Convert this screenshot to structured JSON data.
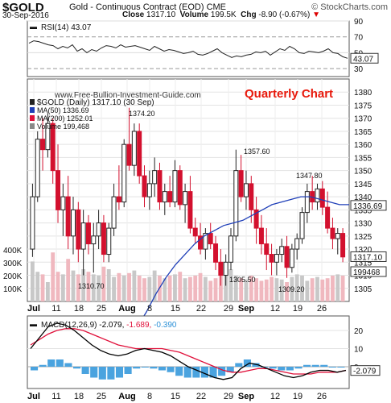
{
  "header": {
    "symbol": "$GOLD",
    "description": "Gold - Continuous Contract (EOD)",
    "exchange": "CME",
    "brand": "© StockCharts.com",
    "date": "30-Sep-2016",
    "close_label": "Close",
    "close_value": "1317.10",
    "volume_label": "Volume",
    "volume_value": "199.5K",
    "chg_label": "Chg",
    "chg_value": "-8.90 (-0.67%)",
    "chg_arrow": "▼"
  },
  "overlay": {
    "watermark": "www.Free-Bullion-Investment-Guide.com",
    "annotation": "Quarterly Chart",
    "annotation_color": "#e8190c"
  },
  "chart_data": [
    {
      "type": "line",
      "panel": "rsi",
      "legend": "RSI(14) 43.07",
      "ylim": [
        20,
        90
      ],
      "ticks": [
        "90",
        "70",
        "50",
        "30"
      ],
      "current_label": "43.07",
      "values": [
        62,
        65,
        64,
        62,
        60,
        59,
        55,
        58,
        56,
        60,
        52,
        55,
        50,
        54,
        52,
        56,
        59,
        58,
        56,
        60,
        57,
        58,
        59,
        57,
        55,
        53,
        58,
        55,
        52,
        54,
        53,
        51,
        49,
        50,
        52,
        48,
        47,
        49,
        52,
        55,
        50,
        47,
        44,
        46,
        45,
        47,
        48,
        51,
        50,
        52,
        47,
        51,
        55,
        53,
        58,
        55,
        50,
        49,
        52,
        51,
        50,
        52,
        55,
        50,
        49,
        45,
        43
      ]
    },
    {
      "type": "candlestick",
      "panel": "price",
      "legend": [
        {
          "name": "$GOLD (Daily) 1317.10 (30 Sep)",
          "color": "#222222"
        },
        {
          "name": "MA(50) 1336.69",
          "color": "#1f3fb8"
        },
        {
          "name": "MA(200) 1252.01",
          "color": "#e0103a"
        },
        {
          "name": "Volume 199,468",
          "color": "#888888"
        }
      ],
      "ylim": [
        1300,
        1385
      ],
      "y_ticks": [
        1380,
        1375,
        1370,
        1365,
        1360,
        1355,
        1350,
        1345,
        1340,
        1335,
        1330,
        1325,
        1320,
        1315,
        1310,
        1305
      ],
      "volume_ticks": [
        "400K",
        "300K",
        "200K",
        "100K"
      ],
      "volume_max": 500000,
      "x_ticks": [
        "Jul",
        "11",
        "18",
        "25",
        "Aug",
        "8",
        "15",
        "22",
        "29",
        "Sep",
        "12",
        "19",
        "26"
      ],
      "annotations": [
        {
          "text": "1374.20"
        },
        {
          "text": "1357.60"
        },
        {
          "text": "1347.80"
        },
        {
          "text": "1310.70"
        },
        {
          "text": "1305.50"
        },
        {
          "text": "1309.20"
        }
      ],
      "current_labels": [
        "1336.69",
        "1317.10",
        "199468"
      ],
      "ohlc": [
        [
          1320,
          1345,
          1317,
          1340
        ],
        [
          1340,
          1365,
          1338,
          1362
        ],
        [
          1362,
          1370,
          1350,
          1358
        ],
        [
          1358,
          1372,
          1355,
          1368
        ],
        [
          1368,
          1370,
          1345,
          1350
        ],
        [
          1350,
          1360,
          1330,
          1335
        ],
        [
          1335,
          1345,
          1325,
          1340
        ],
        [
          1340,
          1348,
          1320,
          1325
        ],
        [
          1325,
          1340,
          1318,
          1335
        ],
        [
          1335,
          1338,
          1315,
          1320
        ],
        [
          1320,
          1335,
          1310,
          1330
        ],
        [
          1330,
          1333,
          1318,
          1322
        ],
        [
          1322,
          1330,
          1311,
          1325
        ],
        [
          1325,
          1335,
          1320,
          1330
        ],
        [
          1330,
          1333,
          1315,
          1318
        ],
        [
          1318,
          1330,
          1315,
          1328
        ],
        [
          1328,
          1345,
          1325,
          1340
        ],
        [
          1340,
          1352,
          1335,
          1338
        ],
        [
          1338,
          1362,
          1336,
          1360
        ],
        [
          1360,
          1374,
          1350,
          1352
        ],
        [
          1352,
          1368,
          1348,
          1365
        ],
        [
          1365,
          1368,
          1345,
          1348
        ],
        [
          1348,
          1352,
          1336,
          1340
        ],
        [
          1340,
          1350,
          1335,
          1345
        ],
        [
          1345,
          1355,
          1340,
          1350
        ],
        [
          1350,
          1353,
          1335,
          1338
        ],
        [
          1338,
          1345,
          1333,
          1342
        ],
        [
          1342,
          1348,
          1336,
          1338
        ],
        [
          1338,
          1354,
          1336,
          1350
        ],
        [
          1350,
          1352,
          1335,
          1337
        ],
        [
          1337,
          1345,
          1330,
          1342
        ],
        [
          1342,
          1348,
          1326,
          1328
        ],
        [
          1328,
          1332,
          1322,
          1325
        ],
        [
          1325,
          1330,
          1318,
          1320
        ],
        [
          1320,
          1328,
          1316,
          1326
        ],
        [
          1326,
          1330,
          1320,
          1322
        ],
        [
          1322,
          1325,
          1312,
          1315
        ],
        [
          1315,
          1320,
          1306,
          1310
        ],
        [
          1310,
          1318,
          1306,
          1315
        ],
        [
          1315,
          1328,
          1312,
          1325
        ],
        [
          1325,
          1358,
          1323,
          1350
        ],
        [
          1350,
          1356,
          1338,
          1340
        ],
        [
          1340,
          1350,
          1335,
          1345
        ],
        [
          1345,
          1348,
          1330,
          1335
        ],
        [
          1335,
          1340,
          1322,
          1328
        ],
        [
          1328,
          1333,
          1318,
          1322
        ],
        [
          1322,
          1328,
          1312,
          1318
        ],
        [
          1318,
          1322,
          1310,
          1315
        ],
        [
          1315,
          1320,
          1310,
          1318
        ],
        [
          1318,
          1324,
          1315,
          1321
        ],
        [
          1321,
          1325,
          1309,
          1313
        ],
        [
          1313,
          1322,
          1311,
          1320
        ],
        [
          1320,
          1326,
          1316,
          1324
        ],
        [
          1324,
          1336,
          1322,
          1334
        ],
        [
          1334,
          1345,
          1330,
          1342
        ],
        [
          1342,
          1348,
          1335,
          1338
        ],
        [
          1338,
          1345,
          1335,
          1343
        ],
        [
          1343,
          1346,
          1333,
          1336
        ],
        [
          1336,
          1342,
          1326,
          1328
        ],
        [
          1328,
          1332,
          1320,
          1324
        ],
        [
          1324,
          1328,
          1318,
          1326
        ],
        [
          1326,
          1328,
          1315,
          1317
        ]
      ],
      "ma50": [
        1290,
        1296,
        1303,
        1309,
        1314,
        1318,
        1322,
        1325,
        1327,
        1329,
        1330,
        1331,
        1333,
        1335,
        1337,
        1338,
        1339,
        1340,
        1340,
        1339,
        1338,
        1337,
        1337
      ],
      "volume": [
        310000,
        230000,
        210000,
        150000,
        380000,
        230000,
        210000,
        330000,
        240000,
        210000,
        250000,
        230000,
        210000,
        200000,
        270000,
        250000,
        190000,
        220000,
        200000,
        220000,
        240000,
        200000,
        180000,
        190000,
        240000,
        200000,
        180000,
        200000,
        210000,
        230000,
        180000,
        190000,
        200000,
        220000,
        190000,
        160000,
        180000,
        200000,
        230000,
        250000,
        200000,
        180000,
        170000,
        200000,
        180000,
        160000,
        170000,
        190000,
        180000,
        170000,
        150000,
        190000,
        210000,
        200000,
        160000,
        180000,
        190000,
        170000,
        180000,
        200000,
        210000,
        200000
      ]
    },
    {
      "type": "line",
      "panel": "macd",
      "legend": "MACD(12,26,9)",
      "legend_values": [
        "-2.079",
        "-1.689",
        "-0.390"
      ],
      "legend_colors": [
        "#000000",
        "#e0103a",
        "#2a8fd6"
      ],
      "ylim": [
        -12,
        28
      ],
      "ticks": [
        "20",
        "10",
        "0"
      ],
      "current_label": "-2.079",
      "macd": [
        10,
        16,
        22,
        24,
        23,
        20,
        16,
        12,
        9,
        7,
        6,
        7,
        9,
        10,
        9,
        8,
        6,
        3,
        0,
        -2,
        -4,
        -6,
        -7,
        -6,
        -1,
        2,
        1,
        -1,
        -3,
        -5,
        -6,
        -5,
        -3,
        -2,
        -2,
        -3,
        -2
      ],
      "signal": [
        12,
        15,
        18,
        20,
        21,
        21,
        20,
        18,
        16,
        14,
        12,
        11,
        10,
        10,
        10,
        10,
        9,
        8,
        6,
        4,
        2,
        0,
        -2,
        -3,
        -3,
        -2,
        -1,
        -1,
        -2,
        -3,
        -4,
        -4,
        -4,
        -3,
        -3,
        -3,
        -2
      ],
      "histogram": [
        -2,
        1,
        4,
        4,
        2,
        -1,
        -4,
        -6,
        -7,
        -7,
        -6,
        -4,
        -1,
        0,
        -1,
        -2,
        -3,
        -5,
        -6,
        -6,
        -6,
        -6,
        -5,
        -3,
        2,
        4,
        2,
        0,
        -1,
        -2,
        -2,
        -1,
        1,
        1,
        1,
        0,
        -0.4
      ]
    }
  ]
}
